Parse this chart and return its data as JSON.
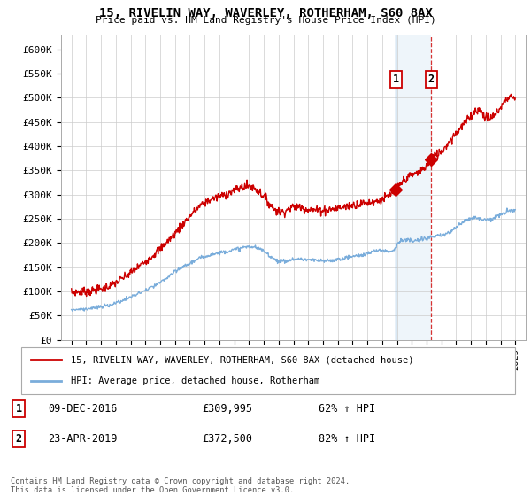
{
  "title": "15, RIVELIN WAY, WAVERLEY, ROTHERHAM, S60 8AX",
  "subtitle": "Price paid vs. HM Land Registry's House Price Index (HPI)",
  "ylabel_ticks": [
    "£0",
    "£50K",
    "£100K",
    "£150K",
    "£200K",
    "£250K",
    "£300K",
    "£350K",
    "£400K",
    "£450K",
    "£500K",
    "£550K",
    "£600K"
  ],
  "ytick_values": [
    0,
    50000,
    100000,
    150000,
    200000,
    250000,
    300000,
    350000,
    400000,
    450000,
    500000,
    550000,
    600000
  ],
  "ylim": [
    0,
    630000
  ],
  "legend_line1": "15, RIVELIN WAY, WAVERLEY, ROTHERHAM, S60 8AX (detached house)",
  "legend_line2": "HPI: Average price, detached house, Rotherham",
  "annotation1_date": "09-DEC-2016",
  "annotation1_price": "£309,995",
  "annotation1_hpi": "62% ↑ HPI",
  "annotation2_date": "23-APR-2019",
  "annotation2_price": "£372,500",
  "annotation2_hpi": "82% ↑ HPI",
  "footer": "Contains HM Land Registry data © Crown copyright and database right 2024.\nThis data is licensed under the Open Government Licence v3.0.",
  "line_color_red": "#cc0000",
  "line_color_blue": "#7aaddb",
  "background_color": "#ffffff",
  "grid_color": "#cccccc",
  "purchase1_year": 2016.92,
  "purchase1_value": 309995,
  "purchase2_year": 2019.31,
  "purchase2_value": 372500
}
